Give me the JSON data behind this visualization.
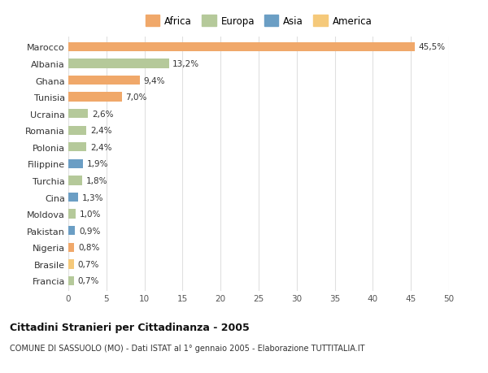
{
  "countries": [
    "Francia",
    "Brasile",
    "Nigeria",
    "Pakistan",
    "Moldova",
    "Cina",
    "Turchia",
    "Filippine",
    "Polonia",
    "Romania",
    "Ucraina",
    "Tunisia",
    "Ghana",
    "Albania",
    "Marocco"
  ],
  "values": [
    0.7,
    0.7,
    0.8,
    0.9,
    1.0,
    1.3,
    1.8,
    1.9,
    2.4,
    2.4,
    2.6,
    7.0,
    9.4,
    13.2,
    45.5
  ],
  "labels": [
    "0,7%",
    "0,7%",
    "0,8%",
    "0,9%",
    "1,0%",
    "1,3%",
    "1,8%",
    "1,9%",
    "2,4%",
    "2,4%",
    "2,6%",
    "7,0%",
    "9,4%",
    "13,2%",
    "45,5%"
  ],
  "colors": [
    "#b5c99a",
    "#f5c97a",
    "#f0a86a",
    "#6b9ec4",
    "#b5c99a",
    "#6b9ec4",
    "#b5c99a",
    "#6b9ec4",
    "#b5c99a",
    "#b5c99a",
    "#b5c99a",
    "#f0a86a",
    "#f0a86a",
    "#b5c99a",
    "#f0a86a"
  ],
  "legend_labels": [
    "Africa",
    "Europa",
    "Asia",
    "America"
  ],
  "legend_colors": [
    "#f0a86a",
    "#b5c99a",
    "#6b9ec4",
    "#f5c97a"
  ],
  "title": "Cittadini Stranieri per Cittadinanza - 2005",
  "subtitle": "COMUNE DI SASSUOLO (MO) - Dati ISTAT al 1° gennaio 2005 - Elaborazione TUTTITALIA.IT",
  "xlim": [
    0,
    50
  ],
  "xticks": [
    0,
    5,
    10,
    15,
    20,
    25,
    30,
    35,
    40,
    45,
    50
  ],
  "background_color": "#ffffff",
  "grid_color": "#e0e0e0"
}
